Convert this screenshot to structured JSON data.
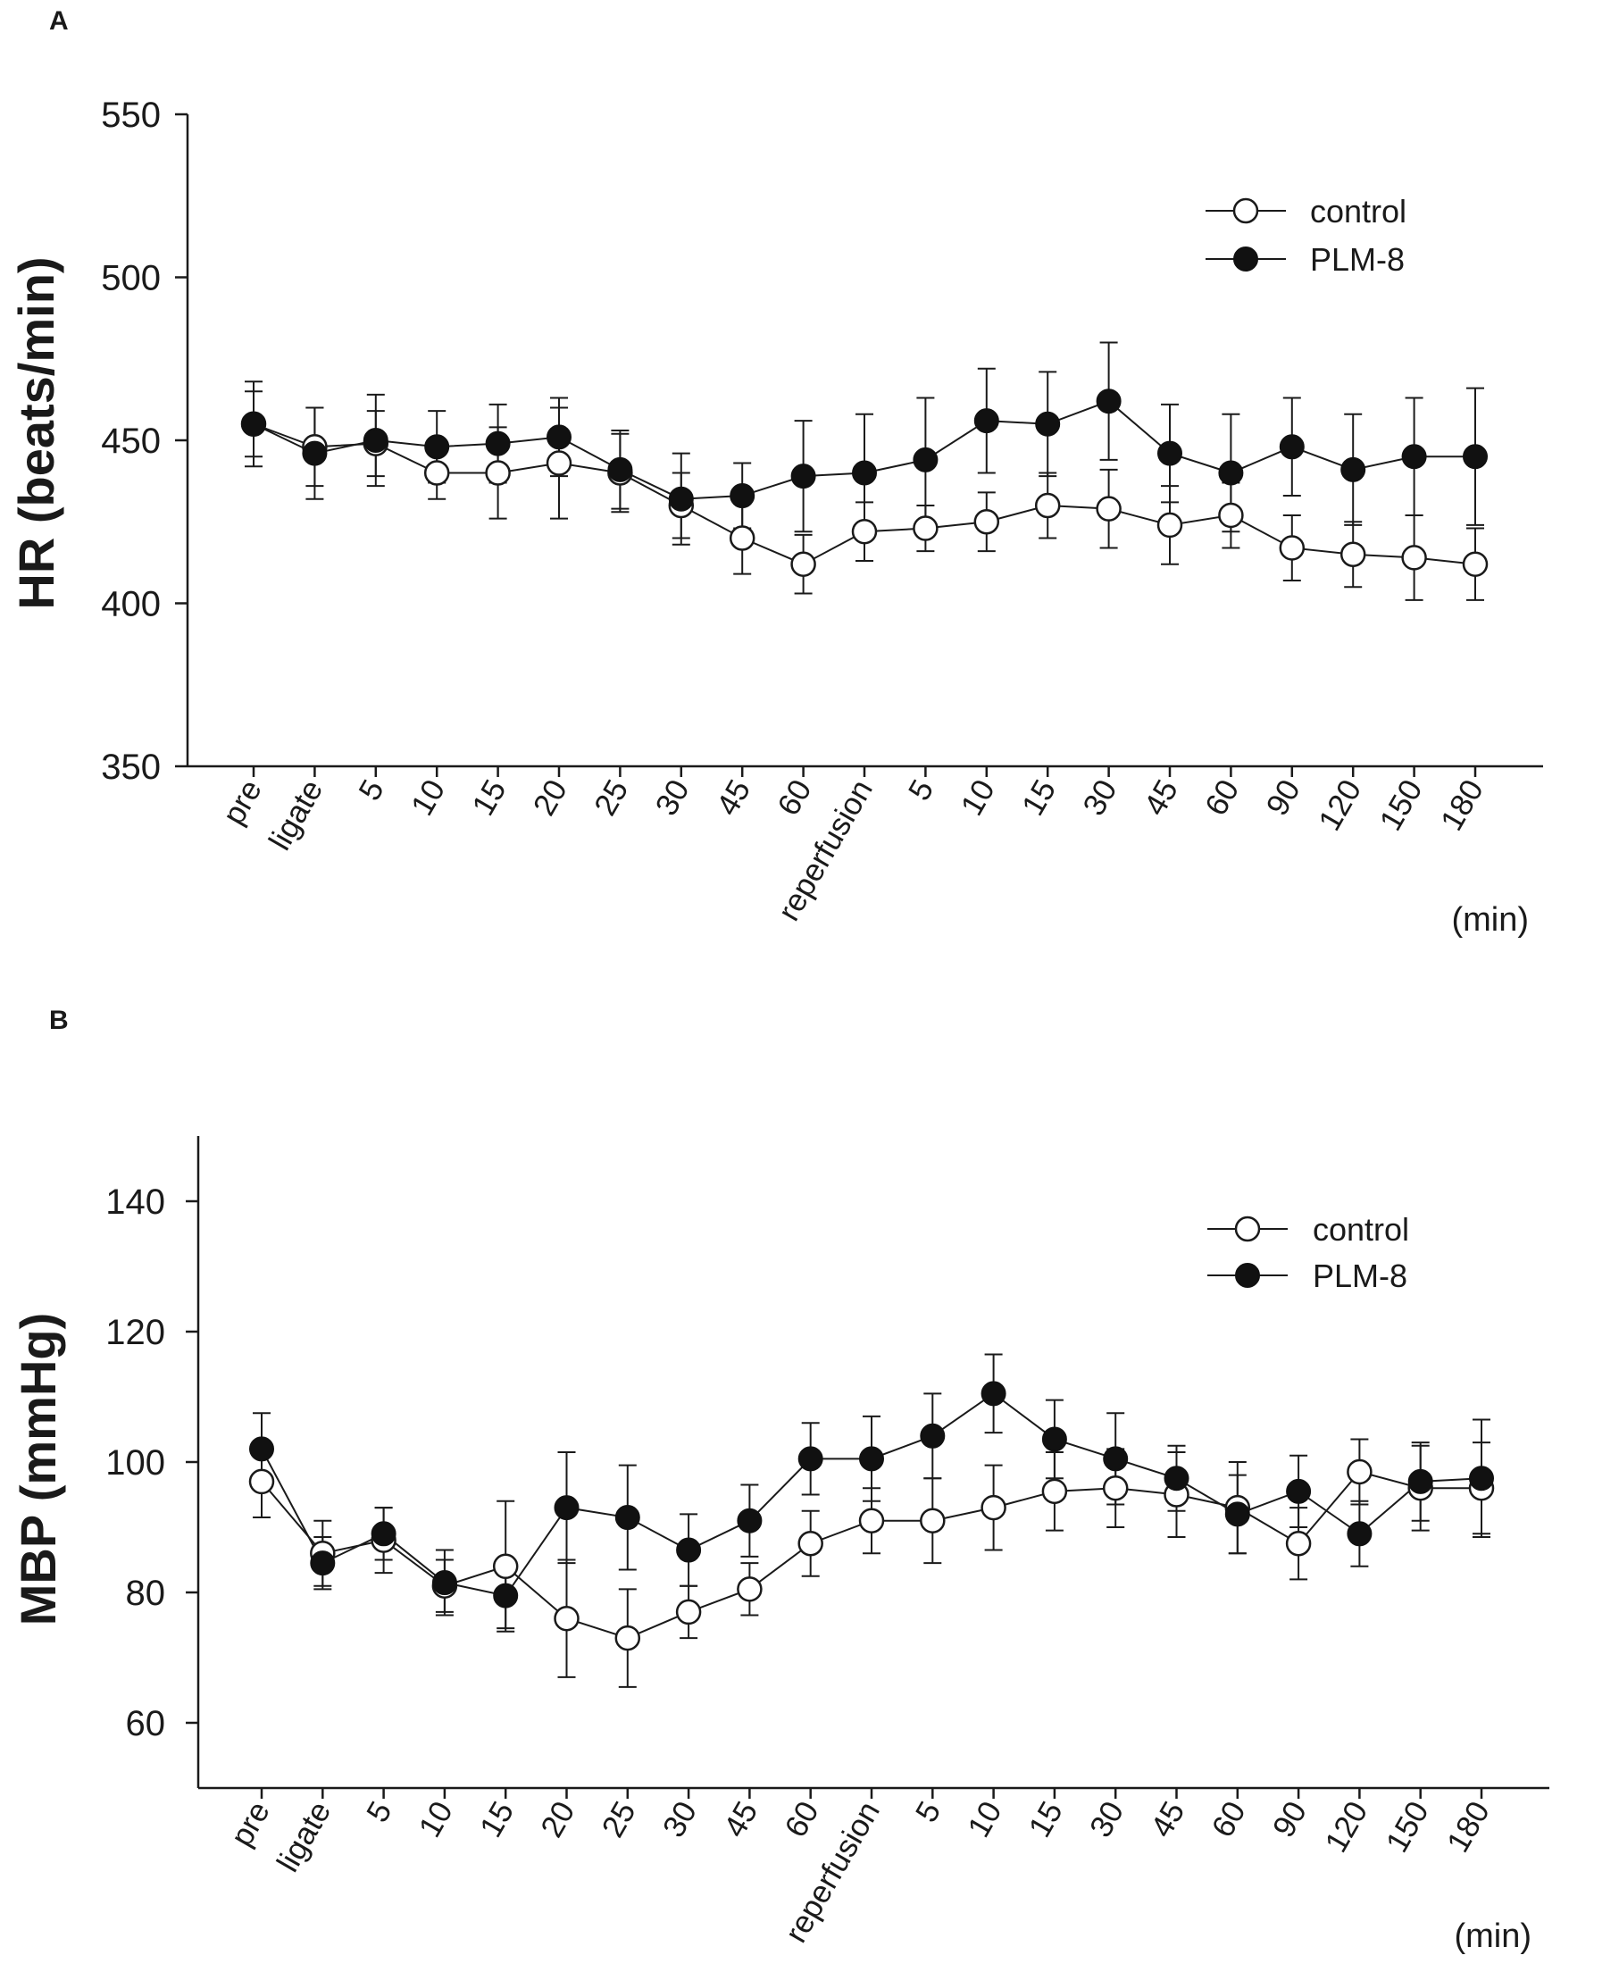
{
  "figure": {
    "background": "#ffffff",
    "ink": "#1a1a1a"
  },
  "chart_data": [
    {
      "panel_label": "A",
      "type": "line",
      "ylabel": "HR (beats/min)",
      "xunit": "(min)",
      "ylim": [
        350,
        550
      ],
      "yticks": [
        350,
        400,
        450,
        500,
        550
      ],
      "categories": [
        "pre",
        "ligate",
        "5",
        "10",
        "15",
        "20",
        "25",
        "30",
        "45",
        "60",
        "reperfusion",
        "5",
        "10",
        "15",
        "30",
        "45",
        "60",
        "90",
        "120",
        "150",
        "180"
      ],
      "legend": {
        "position": "top-right"
      },
      "series": [
        {
          "name": "control",
          "marker": "open",
          "values": [
            455,
            448,
            449,
            440,
            440,
            443,
            440,
            430,
            420,
            412,
            422,
            423,
            425,
            430,
            429,
            424,
            427,
            417,
            415,
            414,
            412
          ],
          "errors": [
            10,
            12,
            10,
            8,
            14,
            17,
            12,
            10,
            11,
            9,
            9,
            7,
            9,
            10,
            12,
            12,
            10,
            10,
            10,
            13,
            11
          ]
        },
        {
          "name": "PLM-8",
          "marker": "filled",
          "values": [
            455,
            446,
            450,
            448,
            449,
            451,
            441,
            432,
            433,
            439,
            440,
            444,
            456,
            455,
            462,
            446,
            440,
            448,
            441,
            445,
            445
          ],
          "errors": [
            13,
            14,
            14,
            11,
            12,
            12,
            12,
            14,
            10,
            17,
            18,
            19,
            16,
            16,
            18,
            15,
            18,
            15,
            17,
            18,
            21
          ]
        }
      ]
    },
    {
      "panel_label": "B",
      "type": "line",
      "ylabel": "MBP (mmHg)",
      "xunit": "(min)",
      "ylim": [
        50,
        150
      ],
      "yticks": [
        60,
        80,
        100,
        120,
        140
      ],
      "categories": [
        "pre",
        "ligate",
        "5",
        "10",
        "15",
        "20",
        "25",
        "30",
        "45",
        "60",
        "reperfusion",
        "5",
        "10",
        "15",
        "30",
        "45",
        "60",
        "90",
        "120",
        "150",
        "180"
      ],
      "legend": {
        "position": "top-right"
      },
      "series": [
        {
          "name": "control",
          "marker": "open",
          "values": [
            97,
            86,
            88,
            81,
            84,
            76,
            73,
            77,
            80.5,
            87.5,
            91,
            91,
            93,
            95.5,
            96,
            95,
            93,
            87.5,
            98.5,
            96,
            96
          ],
          "errors": [
            5.5,
            5,
            5,
            4,
            10,
            9,
            7.5,
            4,
            4,
            5,
            5,
            6.5,
            6.5,
            6,
            6,
            6.5,
            7,
            5.5,
            5,
            6.5,
            7
          ]
        },
        {
          "name": "PLM-8",
          "marker": "filled",
          "values": [
            102,
            84.5,
            89,
            81.5,
            79.5,
            93,
            91.5,
            86.5,
            91,
            100.5,
            100.5,
            104,
            110.5,
            103.5,
            100.5,
            97.5,
            92,
            95.5,
            89,
            97,
            97.5
          ],
          "errors": [
            5.5,
            4,
            4,
            5,
            5,
            8.5,
            8,
            5.5,
            5.5,
            5.5,
            6.5,
            6.5,
            6,
            6,
            7,
            5,
            6,
            5.5,
            5,
            6,
            9
          ]
        }
      ]
    }
  ]
}
